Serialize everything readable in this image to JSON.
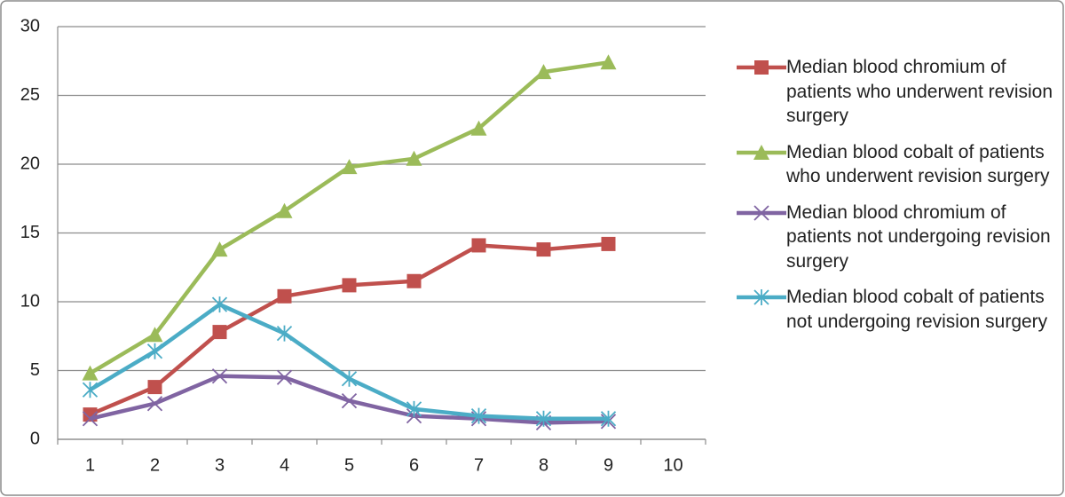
{
  "chart_data": {
    "type": "line",
    "categories": [
      1,
      2,
      3,
      4,
      5,
      6,
      7,
      8,
      9,
      10
    ],
    "series": [
      {
        "name": "Median blood chromium of patients who underwent revision surgery",
        "color": "#c0504d",
        "marker": "square",
        "values": [
          1.8,
          3.8,
          7.8,
          10.4,
          11.2,
          11.5,
          14.1,
          13.8,
          14.2,
          null
        ]
      },
      {
        "name": "Median blood cobalt of patients who underwent revision surgery",
        "color": "#9bbb59",
        "marker": "triangle",
        "values": [
          4.8,
          7.6,
          13.8,
          16.6,
          19.8,
          20.4,
          22.6,
          26.7,
          27.4,
          null
        ]
      },
      {
        "name": "Median blood chromium of patients not undergoing revision surgery",
        "color": "#8064a2",
        "marker": "x",
        "values": [
          1.5,
          2.6,
          4.6,
          4.5,
          2.8,
          1.7,
          1.5,
          1.2,
          1.3,
          null
        ]
      },
      {
        "name": "Median blood cobalt of patients not undergoing revision surgery",
        "color": "#4bacc6",
        "marker": "star",
        "values": [
          3.6,
          6.4,
          9.8,
          7.7,
          4.4,
          2.2,
          1.7,
          1.5,
          1.5,
          null
        ]
      }
    ],
    "ylim": [
      0,
      30
    ],
    "yticks": [
      0,
      5,
      10,
      15,
      20,
      25,
      30
    ],
    "grid": true,
    "legend": "right"
  }
}
